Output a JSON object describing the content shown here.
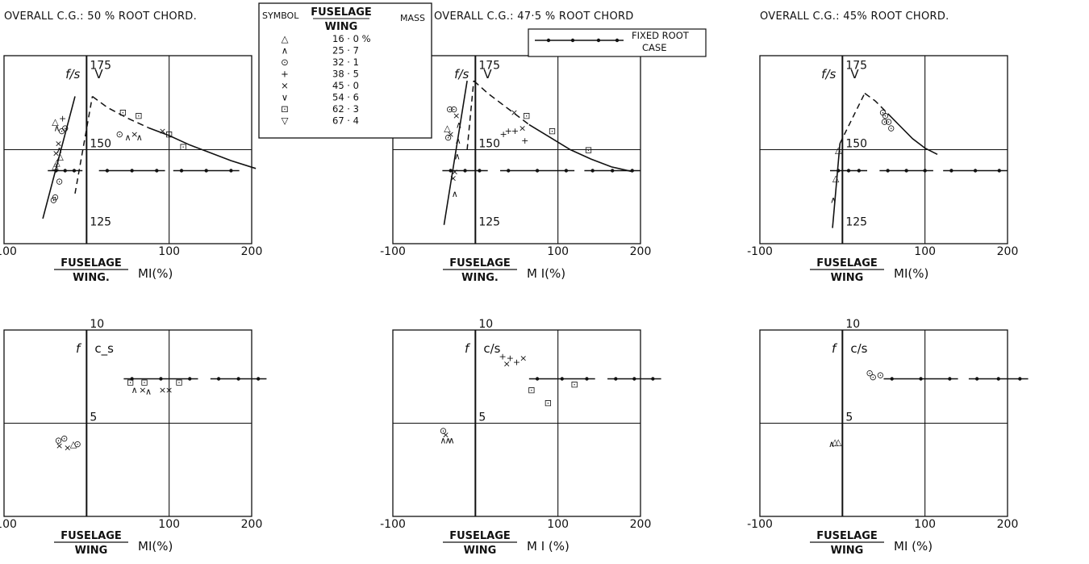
{
  "legend": {
    "header_symbol": "SYMBOL",
    "header_ratio_top": "FUSELAGE",
    "header_ratio_bottom": "WING",
    "header_mass": "MASS",
    "rows": [
      {
        "symbol": "△",
        "value": "16 · 0 %"
      },
      {
        "symbol": "∧",
        "value": "25 · 7"
      },
      {
        "symbol": "⊙",
        "value": "32 · 1"
      },
      {
        "symbol": "+",
        "value": "38 · 5"
      },
      {
        "symbol": "×",
        "value": "45 · 0"
      },
      {
        "symbol": "∨",
        "value": "54 · 6"
      },
      {
        "symbol": "⊡",
        "value": "62 · 3"
      },
      {
        "symbol": "▽",
        "value": "67 · 4"
      }
    ]
  },
  "fixed_root": {
    "line1": "FIXED ROOT",
    "line2": "CASE"
  },
  "chart_data": [
    {
      "type": "scatter",
      "title": "OVERALL C.G.: 50 % ROOT CHORD.",
      "ylabel": "f/s",
      "vlabel": "V",
      "xlabel_top": "FUSELAGE",
      "xlabel_bottom": "WING.",
      "xunit": "MI(%)",
      "xlim": [
        -100,
        200
      ],
      "ylim": [
        120,
        180
      ],
      "xticks": [
        "-100",
        "100",
        "200"
      ],
      "yticks": [
        {
          "label": "175",
          "value": 175
        },
        {
          "label": "150",
          "value": 150
        },
        {
          "label": "125",
          "value": 125
        }
      ],
      "dashed": {
        "x": [
          -14,
          7
        ],
        "y": [
          136,
          167
        ]
      },
      "curve": {
        "x": [
          7,
          25,
          50,
          75,
          100,
          125,
          150,
          175,
          205
        ],
        "y": [
          167,
          163.5,
          160,
          157,
          154.5,
          151.5,
          149,
          146.5,
          144
        ]
      },
      "rise": {
        "x": [
          -53,
          -14
        ],
        "y": [
          128,
          167
        ]
      },
      "fixed_root_ranges": [
        [
          -47,
          -5
        ],
        [
          15,
          95
        ],
        [
          105,
          185
        ]
      ],
      "points": [
        {
          "s": "⊙",
          "x": -40,
          "y": 134
        },
        {
          "s": "⊙",
          "x": -38,
          "y": 135
        },
        {
          "s": "⊙",
          "x": -33,
          "y": 140
        },
        {
          "s": "△",
          "x": -38,
          "y": 145
        },
        {
          "s": "△",
          "x": -36,
          "y": 146
        },
        {
          "s": "△",
          "x": -32,
          "y": 148
        },
        {
          "s": "×",
          "x": -37,
          "y": 149
        },
        {
          "s": "∧",
          "x": -33,
          "y": 150
        },
        {
          "s": "×",
          "x": -34,
          "y": 152
        },
        {
          "s": "△",
          "x": -38,
          "y": 159
        },
        {
          "s": "∧",
          "x": -36,
          "y": 157
        },
        {
          "s": "⊙",
          "x": -30,
          "y": 156
        },
        {
          "s": "⊙",
          "x": -26,
          "y": 157
        },
        {
          "s": "+",
          "x": -29,
          "y": 160
        },
        {
          "s": "⊡",
          "x": 44,
          "y": 162
        },
        {
          "s": "⊡",
          "x": 63,
          "y": 161
        },
        {
          "s": "⊙",
          "x": 40,
          "y": 155
        },
        {
          "s": "∧",
          "x": 50,
          "y": 154
        },
        {
          "s": "×",
          "x": 58,
          "y": 155
        },
        {
          "s": "∧",
          "x": 64,
          "y": 154
        },
        {
          "s": "×",
          "x": 92,
          "y": 156
        },
        {
          "s": "⊡",
          "x": 100,
          "y": 155
        },
        {
          "s": "⊡",
          "x": 117,
          "y": 151
        }
      ]
    },
    {
      "type": "scatter",
      "title": "OVERALL C.G.: 47·5 % ROOT CHORD",
      "ylabel": "f/s",
      "vlabel": "V",
      "xlabel_top": "FUSELAGE",
      "xlabel_bottom": "WING.",
      "xunit": "M I(%)",
      "xlim": [
        -100,
        200
      ],
      "ylim": [
        120,
        180
      ],
      "xticks": [
        "-100",
        "100",
        "200"
      ],
      "yticks": [
        {
          "label": "175",
          "value": 175
        },
        {
          "label": "150",
          "value": 150
        },
        {
          "label": "125",
          "value": 125
        }
      ],
      "dashed": {
        "x": [
          -10,
          -2
        ],
        "y": [
          150,
          172
        ]
      },
      "curve": {
        "x": [
          -2,
          15,
          40,
          65,
          90,
          115,
          140,
          165,
          190
        ],
        "y": [
          172,
          168,
          163,
          158,
          154,
          150,
          147,
          144.5,
          143
        ]
      },
      "rise": {
        "x": [
          -38,
          -10
        ],
        "y": [
          126,
          172
        ]
      },
      "fixed_root_ranges": [
        [
          -40,
          15
        ],
        [
          30,
          120
        ],
        [
          132,
          200
        ]
      ],
      "points": [
        {
          "s": "⊙",
          "x": -31,
          "y": 163
        },
        {
          "s": "⊙",
          "x": -26,
          "y": 163
        },
        {
          "s": "△",
          "x": -34,
          "y": 157
        },
        {
          "s": "⊙",
          "x": -33,
          "y": 154
        },
        {
          "s": "×",
          "x": -30,
          "y": 155
        },
        {
          "s": "×",
          "x": -23,
          "y": 161
        },
        {
          "s": "∧",
          "x": -20,
          "y": 158
        },
        {
          "s": "∧",
          "x": -21,
          "y": 153
        },
        {
          "s": "∧",
          "x": -22,
          "y": 148
        },
        {
          "s": "×",
          "x": -27,
          "y": 141
        },
        {
          "s": "×",
          "x": -25,
          "y": 143
        },
        {
          "s": "∧",
          "x": -25,
          "y": 136
        },
        {
          "s": "×",
          "x": 47,
          "y": 162
        },
        {
          "s": "⊡",
          "x": 62,
          "y": 161
        },
        {
          "s": "×",
          "x": 57,
          "y": 157
        },
        {
          "s": "⊡",
          "x": 93,
          "y": 156
        },
        {
          "s": "+",
          "x": 34,
          "y": 155
        },
        {
          "s": "+",
          "x": 40,
          "y": 156
        },
        {
          "s": "+",
          "x": 48,
          "y": 156
        },
        {
          "s": "+",
          "x": 60,
          "y": 153
        },
        {
          "s": "⊡",
          "x": 137,
          "y": 150
        }
      ]
    },
    {
      "type": "scatter",
      "title": "OVERALL C.G.: 45% ROOT CHORD.",
      "ylabel": "f/s",
      "vlabel": "V",
      "xlabel_top": "FUSELAGE",
      "xlabel_bottom": "WING",
      "xunit": "MI(%)",
      "xlim": [
        -100,
        200
      ],
      "ylim": [
        120,
        180
      ],
      "xticks": [
        "-100",
        "100",
        "200"
      ],
      "yticks": [
        {
          "label": "175",
          "value": 175
        },
        {
          "label": "150",
          "value": 150
        },
        {
          "label": "125",
          "value": 125
        }
      ],
      "dashed": {
        "x": [
          -3,
          27
        ],
        "y": [
          152,
          168
        ]
      },
      "curve": {
        "x": [
          27,
          40,
          55,
          70,
          85,
          100,
          115
        ],
        "y": [
          168,
          165.5,
          161.5,
          157.5,
          153.5,
          150.5,
          148.5
        ]
      },
      "rise": {
        "x": [
          -12,
          -3
        ],
        "y": [
          125,
          152
        ]
      },
      "fixed_root_ranges": [
        [
          -15,
          30
        ],
        [
          45,
          110
        ],
        [
          122,
          200
        ]
      ],
      "points": [
        {
          "s": "⊙",
          "x": 49,
          "y": 162
        },
        {
          "s": "⊙",
          "x": 52,
          "y": 161
        },
        {
          "s": "⊙",
          "x": 51,
          "y": 159
        },
        {
          "s": "⊙",
          "x": 56,
          "y": 159
        },
        {
          "s": "⊙",
          "x": 59,
          "y": 157
        },
        {
          "s": "△",
          "x": -5,
          "y": 150
        },
        {
          "s": "△",
          "x": -8,
          "y": 141
        },
        {
          "s": "∧",
          "x": -11,
          "y": 134
        }
      ]
    },
    {
      "type": "scatter",
      "title": "",
      "ylabel": "f",
      "vlabel": "c_s",
      "xlabel_top": "FUSELAGE",
      "xlabel_bottom": "WING",
      "xunit": "MI(%)",
      "xlim": [
        -100,
        200
      ],
      "ylim": [
        0,
        10
      ],
      "xticks": [
        "-100",
        "100",
        "200"
      ],
      "yticks": [
        {
          "label": "10",
          "value": 10
        },
        {
          "label": "5",
          "value": 5
        }
      ],
      "dashed": null,
      "curve": null,
      "rise": null,
      "fixed_root_ranges": [
        [
          45,
          135
        ],
        [
          150,
          218
        ]
      ],
      "points": [
        {
          "s": "⊡",
          "x": 53,
          "y": 7.2
        },
        {
          "s": "⊡",
          "x": 70,
          "y": 7.2
        },
        {
          "s": "⊡",
          "x": 112,
          "y": 7.2
        },
        {
          "s": "∧",
          "x": 58,
          "y": 6.8
        },
        {
          "s": "×",
          "x": 68,
          "y": 6.8
        },
        {
          "s": "∧",
          "x": 75,
          "y": 6.7
        },
        {
          "s": "×",
          "x": 92,
          "y": 6.8
        },
        {
          "s": "×",
          "x": 100,
          "y": 6.8
        },
        {
          "s": "⊙",
          "x": -34,
          "y": 4.1
        },
        {
          "s": "⊙",
          "x": -27,
          "y": 4.2
        },
        {
          "s": "×",
          "x": -33,
          "y": 3.8
        },
        {
          "s": "×",
          "x": -23,
          "y": 3.7
        },
        {
          "s": "△",
          "x": -16,
          "y": 3.9
        },
        {
          "s": "⊙",
          "x": -11,
          "y": 3.9
        }
      ]
    },
    {
      "type": "scatter",
      "title": "",
      "ylabel": "f",
      "vlabel": "c/s",
      "xlabel_top": "FUSELAGE",
      "xlabel_bottom": "WING",
      "xunit": "M I (%)",
      "xlim": [
        -100,
        200
      ],
      "ylim": [
        0,
        10
      ],
      "xticks": [
        "-100",
        "100",
        "200"
      ],
      "yticks": [
        {
          "label": "10",
          "value": 10
        },
        {
          "label": "5",
          "value": 5
        }
      ],
      "dashed": null,
      "curve": null,
      "rise": null,
      "fixed_root_ranges": [
        [
          65,
          145
        ],
        [
          160,
          225
        ]
      ],
      "points": [
        {
          "s": "+",
          "x": 33,
          "y": 8.6
        },
        {
          "s": "+",
          "x": 42,
          "y": 8.5
        },
        {
          "s": "×",
          "x": 38,
          "y": 8.2
        },
        {
          "s": "+",
          "x": 50,
          "y": 8.3
        },
        {
          "s": "×",
          "x": 58,
          "y": 8.5
        },
        {
          "s": "⊡",
          "x": 68,
          "y": 6.8
        },
        {
          "s": "⊡",
          "x": 120,
          "y": 7.1
        },
        {
          "s": "⊡",
          "x": 88,
          "y": 6.1
        },
        {
          "s": "⊙",
          "x": -39,
          "y": 4.6
        },
        {
          "s": "×",
          "x": -36,
          "y": 4.4
        },
        {
          "s": "∧",
          "x": -39,
          "y": 4.1
        },
        {
          "s": "∧",
          "x": -33,
          "y": 4.1
        },
        {
          "s": "∧",
          "x": -29,
          "y": 4.1
        }
      ]
    },
    {
      "type": "scatter",
      "title": "",
      "ylabel": "f",
      "vlabel": "c/s",
      "xlabel_top": "FUSELAGE",
      "xlabel_bottom": "WING",
      "xunit": "MI (%)",
      "xlim": [
        -100,
        200
      ],
      "ylim": [
        0,
        10
      ],
      "xticks": [
        "-100",
        "100",
        "200"
      ],
      "yticks": [
        {
          "label": "10",
          "value": 10
        },
        {
          "label": "5",
          "value": 5
        }
      ],
      "dashed": null,
      "curve": null,
      "rise": null,
      "fixed_root_ranges": [
        [
          50,
          140
        ],
        [
          153,
          225
        ]
      ],
      "points": [
        {
          "s": "⊙",
          "x": 33,
          "y": 7.7
        },
        {
          "s": "⊙",
          "x": 37,
          "y": 7.5
        },
        {
          "s": "⊙",
          "x": 46,
          "y": 7.6
        },
        {
          "s": "∧",
          "x": -13,
          "y": 3.9
        },
        {
          "s": "△",
          "x": -9,
          "y": 4.0
        },
        {
          "s": "△",
          "x": -5,
          "y": 4.0
        }
      ]
    }
  ]
}
